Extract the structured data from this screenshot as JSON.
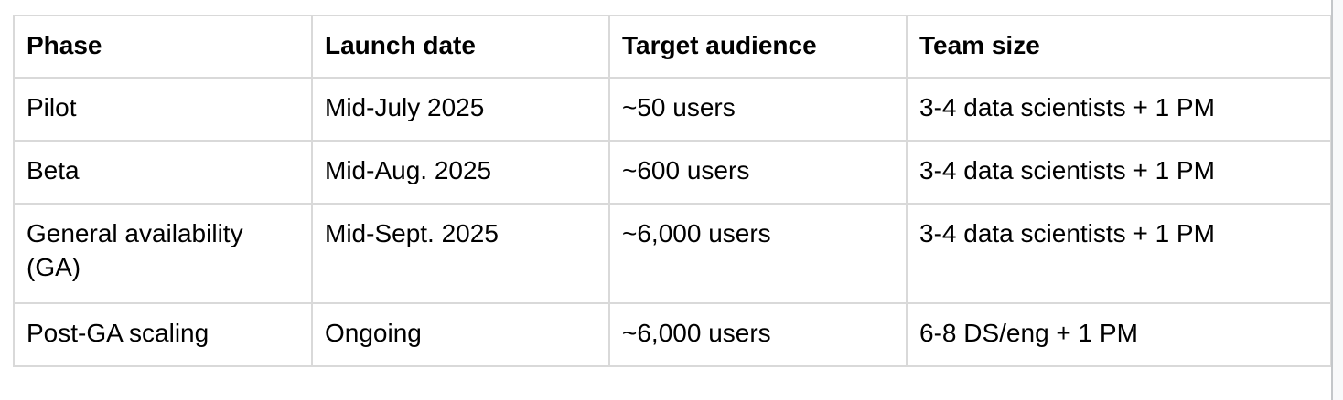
{
  "colors": {
    "page_background": "#ffffff",
    "table_border": "#d9d9d9",
    "page_edge_line": "#c3c6c9",
    "gutter_background": "#f8f9fa",
    "text": "#000000"
  },
  "table": {
    "columns": [
      "Phase",
      "Launch date",
      "Target audience",
      "Team size"
    ],
    "rows": [
      [
        "Pilot",
        "Mid-July 2025",
        "~50 users",
        "3-4 data scientists + 1 PM"
      ],
      [
        "Beta",
        "Mid-Aug. 2025",
        "~600 users",
        "3-4 data scientists + 1 PM"
      ],
      [
        "General availability (GA)",
        "Mid-Sept. 2025",
        "~6,000 users",
        "3-4 data scientists + 1 PM"
      ],
      [
        "Post-GA scaling",
        "Ongoing",
        "~6,000 users",
        "6-8 DS/eng + 1 PM"
      ]
    ]
  }
}
